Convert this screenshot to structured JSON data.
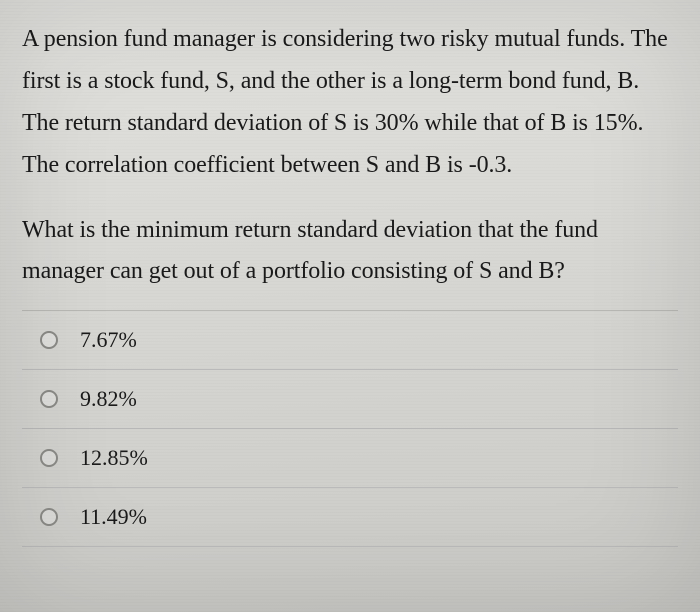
{
  "question": {
    "context": "A pension fund manager is considering two risky mutual funds. The first is a stock fund, S, and the other is a long-term bond fund, B. The return standard deviation of S is 30% while that of B is 15%. The correlation coefficient between S and B is -0.3.",
    "prompt": "What is the minimum return standard deviation that the fund manager can get out of a portfolio consisting of S and B?",
    "options": [
      {
        "label": "7.67%",
        "selected": false
      },
      {
        "label": "9.82%",
        "selected": false
      },
      {
        "label": "12.85%",
        "selected": false
      },
      {
        "label": "11.49%",
        "selected": false
      }
    ]
  },
  "style": {
    "background_color": "#d8d8d4",
    "text_color": "#1a1a1a",
    "divider_color": "#bababa",
    "radio_border_color": "#8a8a86",
    "font_family": "Georgia, serif",
    "question_fontsize": 24,
    "option_fontsize": 22
  }
}
